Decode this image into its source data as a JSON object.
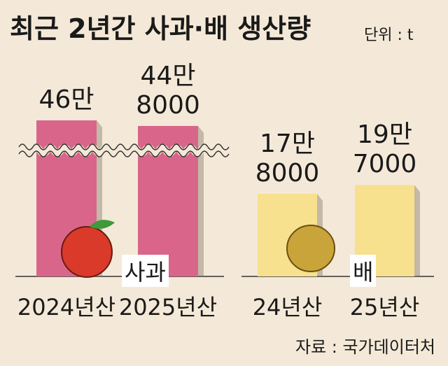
{
  "title": "최근 2년간 사과·배 생산량",
  "unit": "단위 : t",
  "source": "자료 : 국가데이터처",
  "chart_data": [
    {
      "type": "bar",
      "name": "사과",
      "categories": [
        "2024년산",
        "2025년산"
      ],
      "values": [
        460000,
        448000
      ],
      "value_labels": [
        "46만",
        "44만 8000"
      ],
      "color": "#d9668a",
      "axis_break": true
    },
    {
      "type": "bar",
      "name": "배",
      "categories": [
        "24년산",
        "25년산"
      ],
      "values": [
        178000,
        197000
      ],
      "value_labels": [
        "17만 8000",
        "19만 7000"
      ],
      "color": "#f7e08e",
      "axis_break": false
    }
  ]
}
